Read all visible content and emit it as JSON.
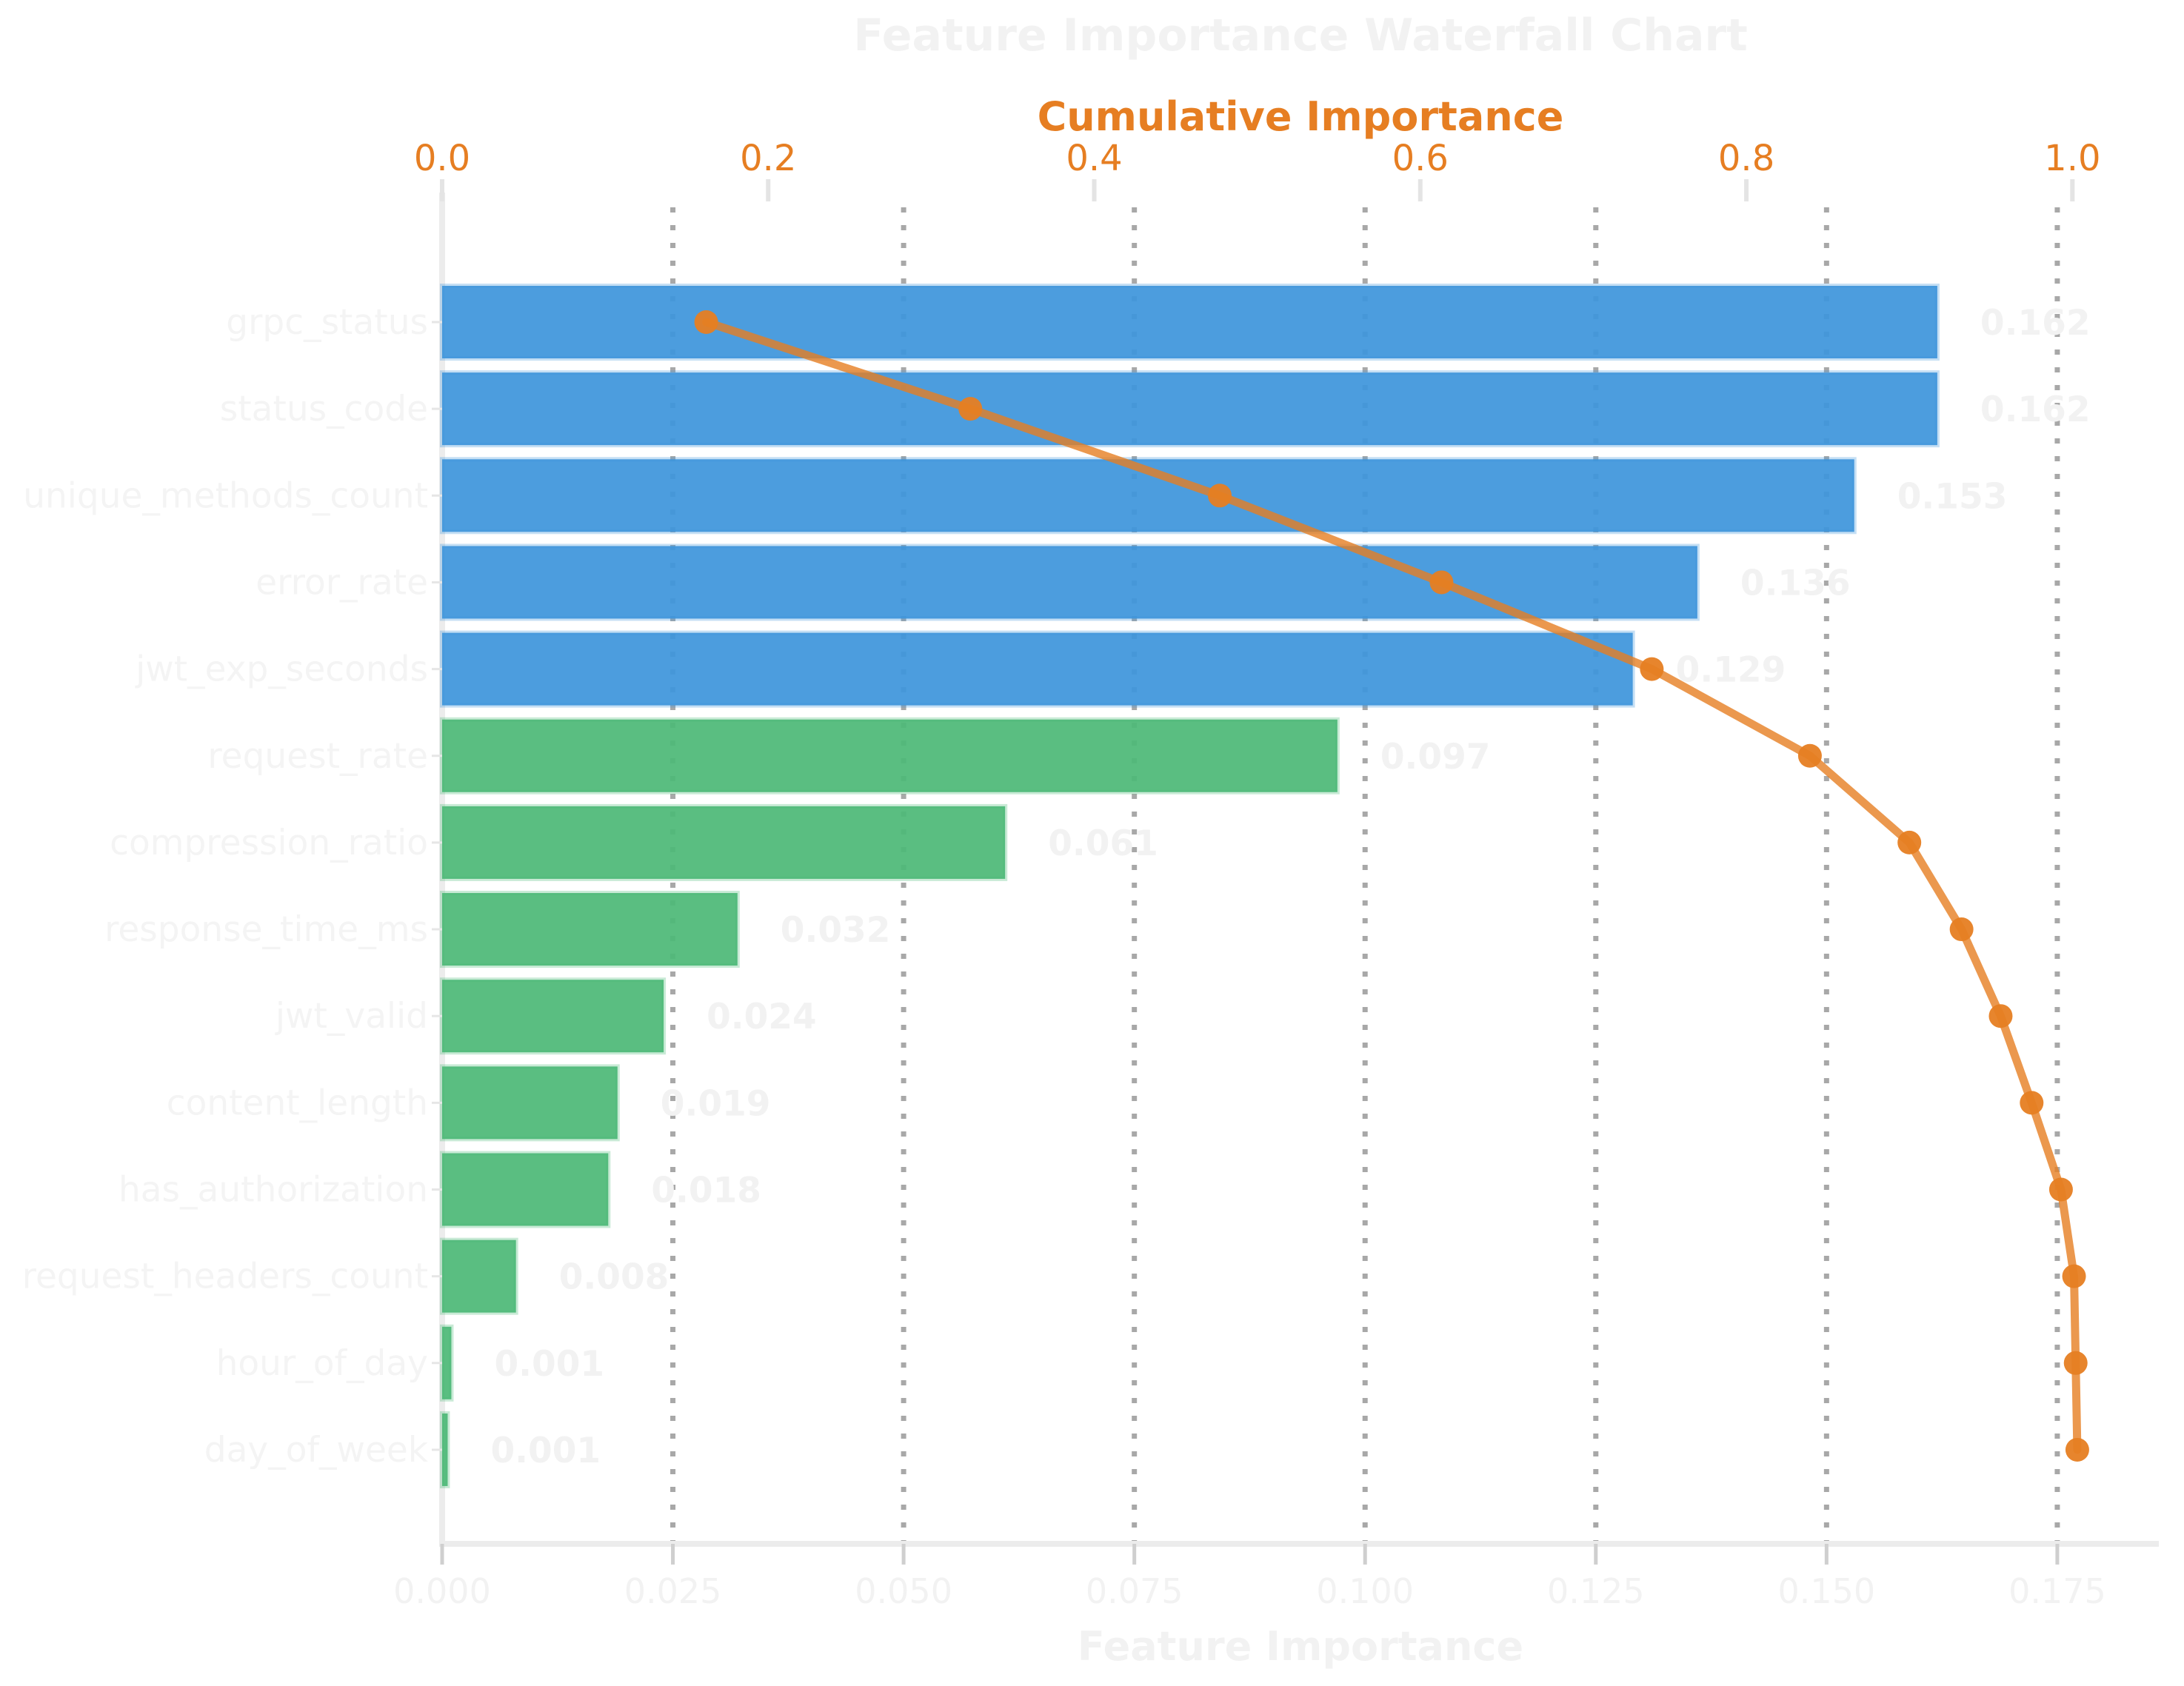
{
  "colors": {
    "bar_blue": "#3E96DB",
    "bar_green": "#4DB977",
    "line_orange": "#E67E22",
    "grid_gray": "#A8A8A8",
    "spine_gray": "#ECECEC",
    "tick_mark_top": "#E4E4E4",
    "tick_mark_left": "#E6E6E6",
    "tick_mark_bottom": "#CFCFCF",
    "faint_text": "#F2F2F2",
    "faint_label_text": "#F4F4F4"
  },
  "chart_data": {
    "type": "bar",
    "subtype": "waterfall-pareto",
    "orientation": "horizontal",
    "title": "Feature Importance Waterfall Chart",
    "grid": "vertical dotted at bottom-axis ticks",
    "legend_position": "none",
    "categories": [
      "grpc_status",
      "status_code",
      "unique_methods_count",
      "error_rate",
      "jwt_exp_seconds",
      "request_rate",
      "compression_ratio",
      "response_time_ms",
      "jwt_valid",
      "content_length",
      "has_authorization",
      "request_headers_count",
      "hour_of_day",
      "day_of_week"
    ],
    "series": [
      {
        "name": "Feature Importance",
        "type": "bar",
        "axis": "bottom",
        "values": [
          0.162,
          0.162,
          0.153,
          0.136,
          0.129,
          0.097,
          0.061,
          0.032,
          0.024,
          0.019,
          0.018,
          0.008,
          0.001,
          0.0006
        ]
      },
      {
        "name": "Cumulative Importance",
        "type": "line",
        "axis": "top",
        "values": [
          0.162,
          0.324,
          0.477,
          0.613,
          0.742,
          0.839,
          0.9,
          0.932,
          0.956,
          0.975,
          0.993,
          1.001,
          1.002,
          1.003
        ]
      }
    ],
    "bar_value_labels": [
      "0.162",
      "0.162",
      "0.153",
      "0.136",
      "0.129",
      "0.097",
      "0.061",
      "0.032",
      "0.024",
      "0.019",
      "0.018",
      "0.008",
      "0.001",
      "0.001"
    ],
    "blue_bar_count": 5,
    "bottom_axis": {
      "label": "Feature Importance",
      "ticks": [
        0,
        0.025,
        0.05,
        0.075,
        0.1,
        0.125,
        0.15,
        0.175
      ],
      "tick_labels": [
        "0.000",
        "0.025",
        "0.050",
        "0.075",
        "0.100",
        "0.125",
        "0.150",
        "0.175"
      ],
      "range": [
        0,
        0.186
      ]
    },
    "top_axis": {
      "label": "Cumulative Importance",
      "ticks": [
        0,
        0.2,
        0.4,
        0.6,
        0.8,
        1.0
      ],
      "tick_labels": [
        "0.0",
        "0.2",
        "0.4",
        "0.6",
        "0.8",
        "1.0"
      ],
      "range": [
        0,
        1.053
      ]
    }
  }
}
